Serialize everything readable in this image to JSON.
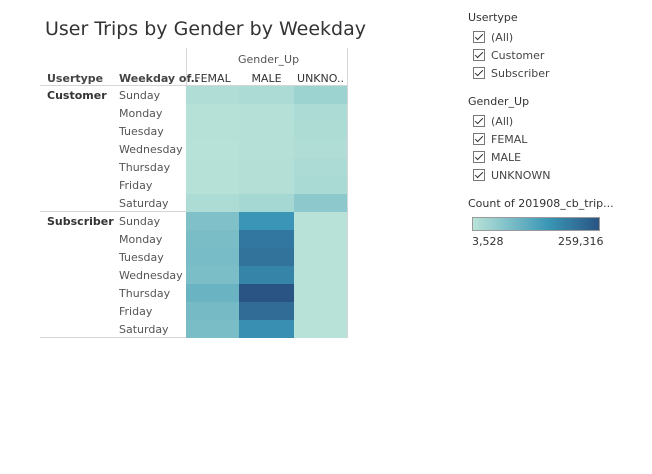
{
  "chart_data": {
    "type": "heatmap",
    "title": "User Trips by Gender by Weekday",
    "column_header": "Gender_Up",
    "row_headers": [
      "Usertype",
      "Weekday of.."
    ],
    "columns": [
      "FEMAL",
      "MALE",
      "UNKNO.."
    ],
    "groups": [
      {
        "name": "Customer",
        "rows": [
          {
            "day": "Sunday",
            "values": [
              14000,
              19000,
              38000
            ]
          },
          {
            "day": "Monday",
            "values": [
              7000,
              10000,
              20000
            ]
          },
          {
            "day": "Tuesday",
            "values": [
              7000,
              10000,
              18000
            ]
          },
          {
            "day": "Wednesday",
            "values": [
              5500,
              9000,
              14000
            ]
          },
          {
            "day": "Thursday",
            "values": [
              7500,
              11000,
              20000
            ]
          },
          {
            "day": "Friday",
            "values": [
              7000,
              11000,
              22000
            ]
          },
          {
            "day": "Saturday",
            "values": [
              18000,
              26000,
              58000
            ]
          }
        ]
      },
      {
        "name": "Subscriber",
        "rows": [
          {
            "day": "Sunday",
            "values": [
              72000,
              158000,
              5000
            ]
          },
          {
            "day": "Monday",
            "values": [
              80000,
              205000,
              5000
            ]
          },
          {
            "day": "Tuesday",
            "values": [
              82000,
              212000,
              5000
            ]
          },
          {
            "day": "Wednesday",
            "values": [
              78000,
              185000,
              5000
            ]
          },
          {
            "day": "Thursday",
            "values": [
              100000,
              259316,
              5000
            ]
          },
          {
            "day": "Friday",
            "values": [
              85000,
              222000,
              5000
            ]
          },
          {
            "day": "Saturday",
            "values": [
              80000,
              168000,
              5000
            ]
          }
        ]
      }
    ],
    "color_range": [
      3528,
      259316
    ],
    "colors": {
      "low": "#b9e3d8",
      "mid": "#3a96b6",
      "high": "#2a5484"
    },
    "legend_title": "Count of 201908_cb_trip...",
    "legend_min_label": "3,528",
    "legend_max_label": "259,316"
  },
  "filters": [
    {
      "title": "Usertype",
      "options": [
        "(All)",
        "Customer",
        "Subscriber"
      ]
    },
    {
      "title": "Gender_Up",
      "options": [
        "(All)",
        "FEMAL",
        "MALE",
        "UNKNOWN"
      ]
    }
  ]
}
